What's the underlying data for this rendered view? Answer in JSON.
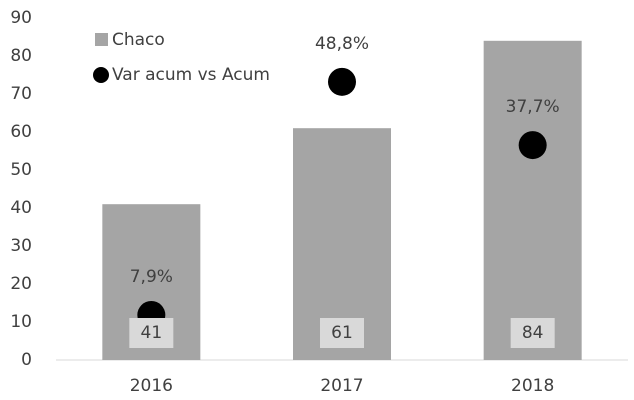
{
  "chart_data": {
    "type": "bar",
    "categories": [
      "2016",
      "2017",
      "2018"
    ],
    "series": [
      {
        "name": "Chaco",
        "color": "#a5a5a5",
        "values": [
          41,
          61,
          84
        ]
      },
      {
        "name": "Var acum vs Acum",
        "color": "#000000",
        "axis": "y2",
        "values": [
          7.9,
          48.8,
          37.7
        ],
        "value_labels": [
          "7,9%",
          "48,8%",
          "37,7%"
        ]
      }
    ],
    "ylim": [
      0,
      90
    ],
    "yticks": [
      0,
      10,
      20,
      30,
      40,
      50,
      60,
      70,
      80,
      90
    ],
    "y2lim": [
      0,
      60
    ],
    "legend": "upper left"
  }
}
